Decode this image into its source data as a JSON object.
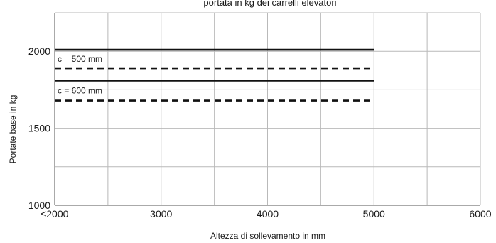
{
  "chart_data": {
    "type": "line",
    "title": "portata in kg dei carrelli elevatori",
    "xlabel": "Altezza di sollevamento in mm",
    "ylabel": "Portate base in kg",
    "xlim": [
      2000,
      6000
    ],
    "ylim": [
      1000,
      2250
    ],
    "x_ticks": [
      {
        "value": 2000,
        "label": "≤2000"
      },
      {
        "value": 3000,
        "label": "3000"
      },
      {
        "value": 4000,
        "label": "4000"
      },
      {
        "value": 5000,
        "label": "5000"
      },
      {
        "value": 6000,
        "label": "6000"
      }
    ],
    "y_ticks": [
      {
        "value": 1000,
        "label": "1000"
      },
      {
        "value": 1500,
        "label": "1500"
      },
      {
        "value": 2000,
        "label": "2000"
      }
    ],
    "grid": true,
    "series": [
      {
        "style": "solid",
        "x": [
          2000,
          5000
        ],
        "y": [
          2010,
          2010
        ]
      },
      {
        "style": "dashed",
        "x": [
          2000,
          5000
        ],
        "y": [
          1890,
          1890
        ]
      },
      {
        "style": "solid",
        "x": [
          2000,
          5000
        ],
        "y": [
          1810,
          1810
        ]
      },
      {
        "style": "dashed",
        "x": [
          2000,
          5000
        ],
        "y": [
          1680,
          1680
        ]
      }
    ],
    "annotations": [
      {
        "text": "c = 500 mm",
        "x": 2000,
        "y": 1950
      },
      {
        "text": "c = 600 mm",
        "x": 2000,
        "y": 1745
      }
    ],
    "colors": {
      "line": "#111111",
      "grid": "#b9b9b9"
    }
  }
}
